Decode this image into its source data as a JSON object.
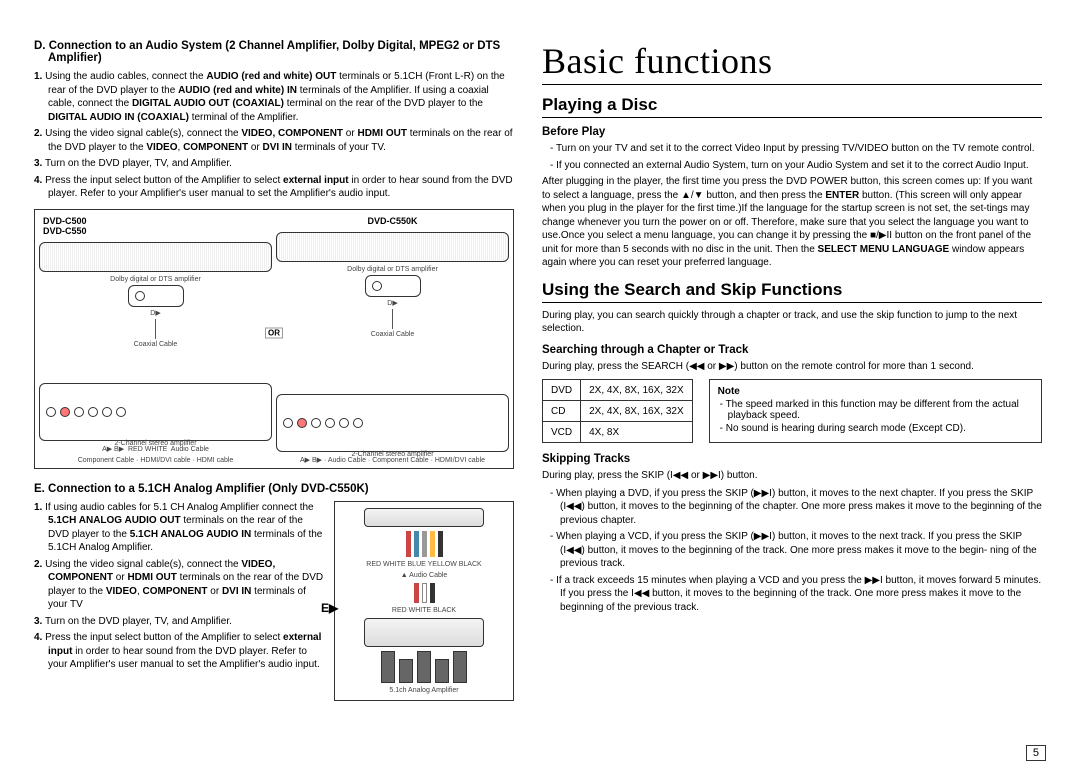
{
  "left": {
    "sectionD": {
      "title": "D. Connection to an Audio System (2 Channel Amplifier, Dolby Digital, MPEG2 or DTS Amplifier)",
      "items": [
        {
          "n": "1.",
          "html": "Using the audio cables, connect the <b>AUDIO (red and white) OUT</b> terminals or 5.1CH (Front L-R) on the rear of the DVD player to the <b>AUDIO (red and white) IN</b> terminals of the Amplifier. If using a coaxial cable, connect the <b>DIGITAL AUDIO OUT (COAXIAL)</b> terminal on the rear of the DVD player to the <b>DIGITAL AUDIO IN (COAXIAL)</b> terminal of the Amplifier."
        },
        {
          "n": "2.",
          "html": "Using the video signal cable(s), connect the <b>VIDEO, COMPONENT</b> or <b>HDMI OUT</b> terminals on the rear of the DVD player to the <b>VIDEO</b>, <b>COMPONENT</b> or <b>DVI IN</b> terminals of your TV."
        },
        {
          "n": "3.",
          "html": "Turn on the DVD player, TV, and Amplifier."
        },
        {
          "n": "4.",
          "html": "Press the input select button of the Amplifier to select <b>external input</b> in order to hear sound from the DVD player. Refer to your Amplifier's user manual to set the Amplifier's audio input."
        }
      ],
      "diag_labels": {
        "left": "DVD-C500\nDVD-C550",
        "right": "DVD-C550K",
        "or": "OR"
      }
    },
    "sectionE": {
      "title": "E.  Connection to a 5.1CH Analog Amplifier (Only DVD-C550K)",
      "items": [
        {
          "n": "1.",
          "html": "If using audio cables for 5.1 CH Analog Amplifier connect the <b>5.1CH ANALOG AUDIO OUT</b> terminals on the rear of the DVD player to the <b>5.1CH ANALOG AUDIO IN</b> terminals of the 5.1CH Analog Amplifier."
        },
        {
          "n": "2.",
          "html": "Using the video signal cable(s), connect the <b>VIDEO, COMPONENT</b> or <b>HDMI OUT</b> terminals on the rear of the DVD player to the <b>VIDEO</b>, <b>COMPONENT</b> or <b>DVI IN</b> terminals of your TV"
        },
        {
          "n": "3.",
          "html": "Turn on the DVD player, TV, and Amplifier."
        },
        {
          "n": "4.",
          "html": "Press the input select button of the Amplifier to select <b>external input</b> in order to hear sound from the DVD player. Refer to your Amplifier's user manual to set the Amplifier's audio input."
        }
      ],
      "side_label": "E▶"
    }
  },
  "right": {
    "big_title": "Basic functions",
    "playing": {
      "h2": "Playing a Disc",
      "h3": "Before Play",
      "bullets": [
        "Turn on your TV and set it to the correct Video Input by pressing TV/VIDEO button on the TV remote control.",
        "If you connected an external Audio System, turn on your Audio System and set it to the correct Audio Input."
      ],
      "para": "After plugging in the player, the first time you press the DVD POWER button, this screen comes up: If you want to select a language, press the ▲/▼ button, and then press the <b>ENTER</b> button. (This screen will only appear when you plug in the player for the first time.)If the language for the startup screen is not set, the set-tings may change whenever you turn the power on or off. Therefore, make sure that you select the language you want to use.Once you select a menu language, you can change it by pressing the ■/▶II button on the front panel of the unit for more than 5 seconds with no disc in the unit. Then the <b>SELECT MENU LANGUAGE</b> window appears again where you can reset your preferred language."
    },
    "search": {
      "h2": "Using the Search and Skip Functions",
      "intro": "During play, you can search quickly through a chapter or track, and use the skip function to jump to the next selection.",
      "h3a": "Searching through a Chapter or Track",
      "p_a": "During play, press the SEARCH (◀◀ or ▶▶) button on the remote control for more than 1 second.",
      "table": [
        [
          "DVD",
          "2X, 4X, 8X, 16X, 32X"
        ],
        [
          "CD",
          "2X, 4X, 8X, 16X, 32X"
        ],
        [
          "VCD",
          "4X, 8X"
        ]
      ],
      "note_title": "Note",
      "note_items": [
        "The speed marked in this function may be different from the actual playback speed.",
        "No sound is hearing during search mode (Except CD)."
      ],
      "h3b": "Skipping Tracks",
      "p_b": "During play, press the SKIP (I◀◀ or ▶▶I) button.",
      "skip_bullets": [
        "When playing a DVD, if you press the SKIP (▶▶I) button, it moves to the next chapter. If you press the SKIP (I◀◀) button, it moves to the beginning of the chapter. One more press makes it move to the beginning of the previous chapter.",
        "When playing a VCD, if you press the SKIP (▶▶I) button, it moves to the next track. If you press the SKIP (I◀◀) button, it moves to the beginning of the track. One more press makes it move to the begin- ning of the previous track.",
        "If a track exceeds 15 minutes when playing a VCD and you press the ▶▶I button, it moves forward 5 minutes. If you press the I◀◀ button, it moves to the beginning of the track. One more press makes it move to the beginning of the previous track."
      ]
    }
  },
  "page_number": "5"
}
